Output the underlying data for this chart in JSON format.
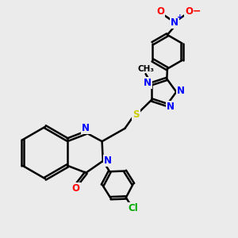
{
  "bg_color": "#ebebeb",
  "bond_color": "#000000",
  "bond_width": 1.8,
  "atom_colors": {
    "N": "#0000ff",
    "O": "#ff0000",
    "S": "#cccc00",
    "Cl": "#00aa00",
    "C": "#000000",
    "plus": "#0000ff",
    "minus": "#ff0000"
  },
  "font_size_atom": 8.5,
  "fig_size": [
    3.0,
    3.0
  ],
  "dpi": 100
}
